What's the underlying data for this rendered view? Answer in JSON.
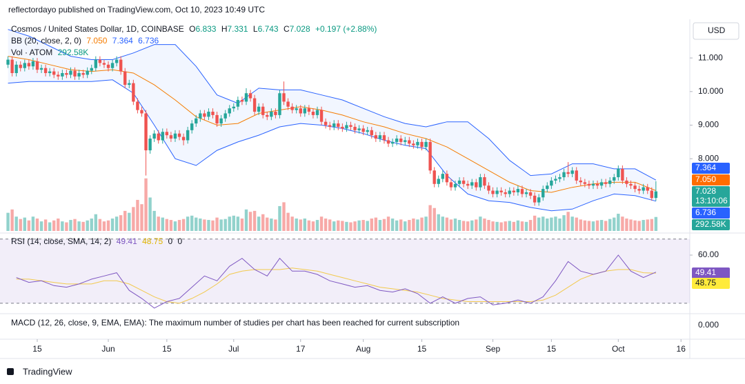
{
  "header": "reflectordayo published on TradingView.com, Oct 10, 2023 10:49 UTC",
  "currency": "USD",
  "footer": "TradingView",
  "chart_data": {
    "type": "candlestick",
    "title": "Cosmos / United States Dollar, 1D, COINBASE",
    "ohlc_letters": [
      "O",
      "H",
      "L",
      "C"
    ],
    "change": "+0.197 (+2.88%)",
    "countdown": "13:10:06",
    "open": [
      10.8,
      10.95,
      10.55,
      10.8,
      10.7,
      10.85,
      10.75,
      10.9,
      10.65,
      10.7,
      10.55,
      10.6,
      10.5,
      10.45,
      10.55,
      10.5,
      10.62,
      10.45,
      10.55,
      10.5,
      10.62,
      10.7,
      10.95,
      10.85,
      10.8,
      10.7,
      10.85,
      10.95,
      10.6,
      10.2,
      10.25,
      9.7,
      9.45,
      9.35,
      8.25,
      8.6,
      8.75,
      8.55,
      8.8,
      8.7,
      8.6,
      8.75,
      8.65,
      8.55,
      8.85,
      9.05,
      9.2,
      9.35,
      9.25,
      9.4,
      9.3,
      9.05,
      9.2,
      9.35,
      9.5,
      9.55,
      9.75,
      9.7,
      9.95,
      9.8,
      9.4,
      9.55,
      9.3,
      9.25,
      9.4,
      9.3,
      9.95,
      9.7,
      9.55,
      9.45,
      9.5,
      9.35,
      9.5,
      9.4,
      9.3,
      9.45,
      9.1,
      9.0,
      8.95,
      9.05,
      8.95,
      8.9,
      9.0,
      8.95,
      8.85,
      8.9,
      8.8,
      8.85,
      8.7,
      8.6,
      8.7,
      8.55,
      8.45,
      8.5,
      8.6,
      8.5,
      8.55,
      8.45,
      8.4,
      8.5,
      8.35,
      8.5,
      7.65,
      7.25,
      7.4,
      7.55,
      7.3,
      7.15,
      7.25,
      7.35,
      7.25,
      7.2,
      7.3,
      7.15,
      7.45,
      7.2,
      7.05,
      6.95,
      7.05,
      7.0,
      6.95,
      7.05,
      7.0,
      7.1,
      6.95,
      7.0,
      6.9,
      6.7,
      6.85,
      7.1,
      7.2,
      7.35,
      7.4,
      7.45,
      7.6,
      7.55,
      7.65,
      7.35,
      7.3,
      7.25,
      7.2,
      7.25,
      7.2,
      7.3,
      7.25,
      7.35,
      7.45,
      7.7,
      7.35,
      7.25,
      7.2,
      7.1,
      7.05,
      7.15,
      7.05,
      6.833
    ],
    "high": [
      11.05,
      11.05,
      10.9,
      10.9,
      10.95,
      10.95,
      11.0,
      11.0,
      10.8,
      10.8,
      10.7,
      10.7,
      10.6,
      10.65,
      10.65,
      10.72,
      10.72,
      10.65,
      10.65,
      10.72,
      10.8,
      11.05,
      11.05,
      10.95,
      10.9,
      10.95,
      11.05,
      11.05,
      10.7,
      10.35,
      10.35,
      9.8,
      9.55,
      9.45,
      8.7,
      8.85,
      8.85,
      8.9,
      8.9,
      8.8,
      8.85,
      8.85,
      8.75,
      8.95,
      9.15,
      9.3,
      9.45,
      9.45,
      9.5,
      9.5,
      9.4,
      9.3,
      9.45,
      9.6,
      9.65,
      9.85,
      9.85,
      10.1,
      10.05,
      9.9,
      9.65,
      9.65,
      9.4,
      9.5,
      9.5,
      10.05,
      10.3,
      9.8,
      9.65,
      9.6,
      9.6,
      9.6,
      9.6,
      9.5,
      9.55,
      9.55,
      9.2,
      9.1,
      9.15,
      9.15,
      9.05,
      9.1,
      9.1,
      9.05,
      9.0,
      9.0,
      8.95,
      8.95,
      8.8,
      8.8,
      8.8,
      8.65,
      8.6,
      8.7,
      8.7,
      8.65,
      8.65,
      8.55,
      8.6,
      8.6,
      8.6,
      8.6,
      7.75,
      7.5,
      7.65,
      7.65,
      7.4,
      7.35,
      7.45,
      7.45,
      7.35,
      7.4,
      7.4,
      7.55,
      7.55,
      7.3,
      7.15,
      7.15,
      7.15,
      7.1,
      7.15,
      7.15,
      7.2,
      7.2,
      7.1,
      7.1,
      7.0,
      6.95,
      7.2,
      7.3,
      7.45,
      7.5,
      7.55,
      7.7,
      7.9,
      7.75,
      7.75,
      7.45,
      7.4,
      7.35,
      7.35,
      7.35,
      7.4,
      7.4,
      7.45,
      7.55,
      7.8,
      7.8,
      7.45,
      7.35,
      7.3,
      7.2,
      7.25,
      7.25,
      7.15,
      7.331
    ],
    "low": [
      10.7,
      10.45,
      10.45,
      10.6,
      10.6,
      10.65,
      10.65,
      10.55,
      10.55,
      10.45,
      10.45,
      10.4,
      10.35,
      10.35,
      10.4,
      10.4,
      10.35,
      10.35,
      10.4,
      10.4,
      10.52,
      10.6,
      10.75,
      10.7,
      10.6,
      10.6,
      10.75,
      10.5,
      10.1,
      10.1,
      9.6,
      9.35,
      9.25,
      7.5,
      8.15,
      8.5,
      8.45,
      8.45,
      8.6,
      8.5,
      8.5,
      8.55,
      8.4,
      8.45,
      8.75,
      8.95,
      9.1,
      9.15,
      9.15,
      9.2,
      8.95,
      8.95,
      9.1,
      9.25,
      9.4,
      9.45,
      9.6,
      9.6,
      9.7,
      9.3,
      9.3,
      9.2,
      9.15,
      9.15,
      9.2,
      9.2,
      9.6,
      9.45,
      9.35,
      9.35,
      9.25,
      9.25,
      9.3,
      9.2,
      9.2,
      9.0,
      8.9,
      8.85,
      8.85,
      8.85,
      8.8,
      8.8,
      8.85,
      8.75,
      8.75,
      8.7,
      8.7,
      8.6,
      8.5,
      8.5,
      8.45,
      8.35,
      8.35,
      8.4,
      8.4,
      8.4,
      8.35,
      8.3,
      8.3,
      8.25,
      8.25,
      7.55,
      7.15,
      7.15,
      7.3,
      7.2,
      7.05,
      7.05,
      7.15,
      7.15,
      7.1,
      7.1,
      7.05,
      7.05,
      7.1,
      6.95,
      6.85,
      6.85,
      6.9,
      6.85,
      6.85,
      6.9,
      6.9,
      6.85,
      6.85,
      6.8,
      6.6,
      6.6,
      6.75,
      7.0,
      7.1,
      7.25,
      7.3,
      7.35,
      7.45,
      7.45,
      7.25,
      7.2,
      7.15,
      7.1,
      7.1,
      7.1,
      7.1,
      7.15,
      7.15,
      7.25,
      7.35,
      7.25,
      7.15,
      7.1,
      7.0,
      6.95,
      6.95,
      6.95,
      6.75,
      6.743
    ],
    "close": [
      10.95,
      10.55,
      10.8,
      10.7,
      10.85,
      10.75,
      10.9,
      10.65,
      10.7,
      10.55,
      10.6,
      10.5,
      10.45,
      10.55,
      10.5,
      10.62,
      10.45,
      10.55,
      10.5,
      10.62,
      10.7,
      10.95,
      10.85,
      10.8,
      10.7,
      10.85,
      10.95,
      10.6,
      10.2,
      10.25,
      9.7,
      9.45,
      9.35,
      8.25,
      8.6,
      8.75,
      8.55,
      8.8,
      8.7,
      8.6,
      8.75,
      8.65,
      8.55,
      8.85,
      9.05,
      9.2,
      9.35,
      9.25,
      9.4,
      9.3,
      9.05,
      9.2,
      9.35,
      9.5,
      9.55,
      9.75,
      9.7,
      9.95,
      9.8,
      9.4,
      9.55,
      9.3,
      9.25,
      9.4,
      9.3,
      9.95,
      9.7,
      9.55,
      9.45,
      9.5,
      9.35,
      9.5,
      9.4,
      9.3,
      9.45,
      9.1,
      9.0,
      8.95,
      9.05,
      8.95,
      8.9,
      9.0,
      8.95,
      8.85,
      8.9,
      8.8,
      8.85,
      8.7,
      8.6,
      8.7,
      8.55,
      8.45,
      8.5,
      8.6,
      8.5,
      8.55,
      8.45,
      8.4,
      8.5,
      8.35,
      8.5,
      7.65,
      7.25,
      7.4,
      7.55,
      7.3,
      7.15,
      7.25,
      7.35,
      7.25,
      7.2,
      7.3,
      7.15,
      7.45,
      7.2,
      7.05,
      6.95,
      7.05,
      7.0,
      6.95,
      7.05,
      7.0,
      7.1,
      6.95,
      7.0,
      6.9,
      6.7,
      6.85,
      7.1,
      7.2,
      7.35,
      7.4,
      7.45,
      7.6,
      7.55,
      7.65,
      7.35,
      7.3,
      7.25,
      7.2,
      7.25,
      7.2,
      7.3,
      7.25,
      7.35,
      7.45,
      7.7,
      7.35,
      7.25,
      7.2,
      7.1,
      7.05,
      7.15,
      7.05,
      6.83,
      7.028
    ],
    "ylim": [
      5.85,
      12.11
    ],
    "yticks": [
      {
        "value": 11,
        "label": "11.000"
      },
      {
        "value": 10,
        "label": "10.000"
      },
      {
        "value": 9,
        "label": "9.000"
      },
      {
        "value": 8,
        "label": "8.000"
      }
    ],
    "xticks": [
      {
        "value": 7,
        "label": "15"
      },
      {
        "value": 24,
        "label": "Jun"
      },
      {
        "value": 38,
        "label": "15"
      },
      {
        "value": 54,
        "label": "Jul"
      },
      {
        "value": 70,
        "label": "17"
      },
      {
        "value": 85,
        "label": "Aug"
      },
      {
        "value": 99,
        "label": "15"
      },
      {
        "value": 116,
        "label": "Sep"
      },
      {
        "value": 130,
        "label": "15"
      },
      {
        "value": 146,
        "label": "Oct"
      },
      {
        "value": 161,
        "label": "16"
      }
    ],
    "colors": {
      "up": "#26a69a",
      "down": "#ef5350"
    },
    "bb": {
      "name": "BB (20, close, 2, 0)",
      "x": [
        0,
        5,
        10,
        15,
        20,
        25,
        30,
        35,
        40,
        45,
        50,
        55,
        60,
        65,
        70,
        75,
        80,
        85,
        90,
        95,
        100,
        105,
        110,
        115,
        120,
        125,
        130,
        135,
        140,
        145,
        150,
        155
      ],
      "basis": [
        11.05,
        10.95,
        10.8,
        10.65,
        10.6,
        10.65,
        10.55,
        10.2,
        9.75,
        9.25,
        9.0,
        9.05,
        9.35,
        9.45,
        9.55,
        9.45,
        9.3,
        9.1,
        8.95,
        8.75,
        8.6,
        8.35,
        8.0,
        7.65,
        7.3,
        7.05,
        7.0,
        7.15,
        7.25,
        7.3,
        7.3,
        7.05
      ],
      "upper": [
        11.85,
        11.65,
        11.35,
        11.05,
        10.95,
        10.95,
        11.15,
        11.4,
        11.4,
        10.75,
        9.9,
        9.65,
        10.1,
        10.05,
        10.05,
        9.9,
        9.75,
        9.5,
        9.25,
        9.05,
        8.95,
        9.1,
        9.1,
        8.6,
        7.95,
        7.5,
        7.55,
        7.85,
        7.85,
        7.7,
        7.7,
        7.364
      ],
      "lower": [
        10.25,
        10.3,
        10.3,
        10.3,
        10.3,
        10.35,
        9.95,
        9.0,
        8.0,
        7.8,
        8.25,
        8.5,
        8.7,
        8.95,
        9.05,
        9.0,
        8.9,
        8.75,
        8.55,
        8.4,
        8.3,
        7.5,
        6.95,
        6.75,
        6.7,
        6.55,
        6.45,
        6.5,
        6.75,
        6.95,
        6.9,
        6.736
      ],
      "value_labels": {
        "basis": "7.050",
        "upper": "7.364",
        "lower": "6.736"
      },
      "colors": {
        "basis": "#f57c00",
        "band": "#2962ff"
      }
    },
    "volume": {
      "name": "Vol · ATOM",
      "value_label": "292.58K",
      "ylim": [
        0,
        4400
      ],
      "values": [
        380,
        450,
        300,
        250,
        280,
        220,
        300,
        260,
        200,
        240,
        180,
        220,
        260,
        200,
        180,
        230,
        250,
        200,
        190,
        220,
        260,
        350,
        250,
        200,
        220,
        260,
        300,
        330,
        420,
        380,
        500,
        650,
        560,
        1100,
        700,
        420,
        300,
        280,
        250,
        230,
        200,
        230,
        250,
        300,
        320,
        280,
        260,
        240,
        230,
        220,
        280,
        240,
        250,
        300,
        320,
        300,
        260,
        450,
        400,
        420,
        300,
        350,
        280,
        260,
        240,
        520,
        600,
        380,
        300,
        260,
        240,
        260,
        220,
        200,
        230,
        300,
        260,
        240,
        200,
        220,
        210,
        190,
        180,
        200,
        220,
        230,
        210,
        260,
        280,
        230,
        250,
        300,
        260,
        220,
        240,
        200,
        230,
        260,
        240,
        280,
        300,
        540,
        480,
        350,
        300,
        280,
        240,
        260,
        230,
        210,
        200,
        220,
        240,
        300,
        260,
        230,
        200,
        190,
        180,
        200,
        210,
        190,
        220,
        200,
        190,
        230,
        320,
        280,
        300,
        260,
        280,
        300,
        260,
        330,
        400,
        300,
        280,
        240,
        220,
        210,
        200,
        220,
        230,
        210,
        250,
        280,
        360,
        300,
        260,
        240,
        220,
        210,
        230,
        240,
        250,
        292.58
      ]
    },
    "rsi": {
      "name": "RSI (14, close, SMA, 14, 2)",
      "extra": [
        0,
        0
      ],
      "x": [
        2,
        5,
        8,
        11,
        14,
        17,
        20,
        23,
        26,
        29,
        32,
        35,
        38,
        41,
        44,
        47,
        50,
        53,
        56,
        59,
        62,
        65,
        68,
        71,
        74,
        77,
        80,
        83,
        86,
        89,
        92,
        95,
        98,
        101,
        104,
        107,
        110,
        113,
        116,
        119,
        122,
        125,
        128,
        131,
        134,
        137,
        140,
        143,
        146,
        149,
        152,
        155
      ],
      "values": [
        46,
        43,
        44,
        41,
        40,
        42,
        45,
        47,
        49,
        38,
        33,
        27,
        31,
        33,
        40,
        47,
        44,
        53,
        58,
        51,
        47,
        58,
        50,
        50,
        48,
        44,
        42,
        40,
        41,
        38,
        37,
        39,
        36,
        30,
        34,
        30,
        33,
        34,
        29,
        30,
        32,
        30,
        34,
        44,
        56,
        50,
        48,
        50,
        60,
        50,
        46,
        49.41
      ],
      "sma": [
        45,
        45,
        44,
        43,
        42,
        42,
        42,
        44,
        44,
        42,
        38,
        34,
        31,
        30,
        33,
        37,
        42,
        48,
        50,
        51,
        51,
        51,
        52,
        51,
        50,
        48,
        46,
        44,
        42,
        40,
        39,
        38,
        37,
        35,
        33,
        32,
        31,
        31,
        31,
        31,
        31,
        31,
        32,
        35,
        40,
        45,
        48,
        50,
        51,
        51,
        49,
        48.75
      ],
      "ylim": [
        23.5,
        72.9
      ],
      "yticks": [
        {
          "value": 60,
          "label": "60.00"
        }
      ],
      "bands": [
        30,
        70
      ],
      "colors": {
        "rsi": "#7e57c2",
        "sma": "#f2c94c"
      }
    },
    "macd": {
      "name": "MACD (12, 26, close, 9, EMA, EMA): The maximum number of studies per chart has been reached for current subscription",
      "yticks": [
        {
          "value": 0,
          "label": "0.000"
        }
      ]
    }
  }
}
